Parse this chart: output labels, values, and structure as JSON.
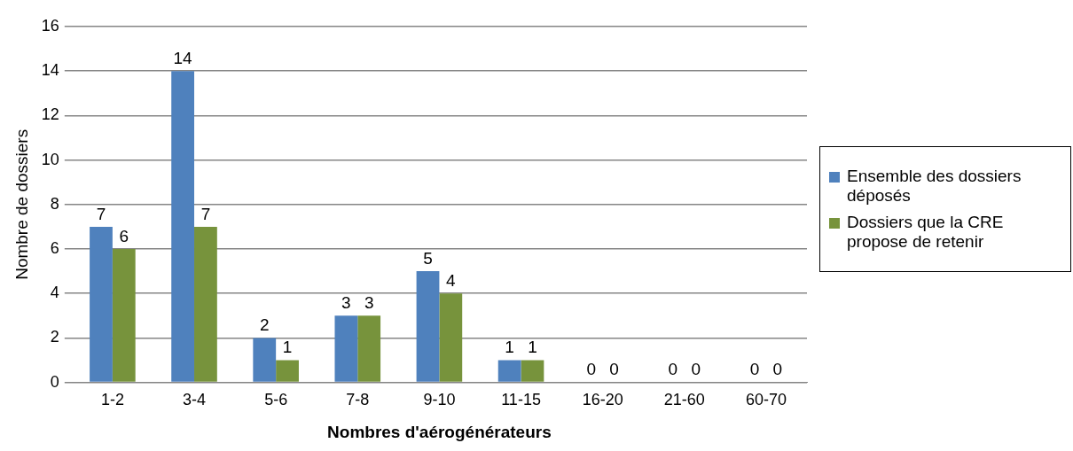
{
  "chart_data": {
    "type": "bar",
    "xlabel": "Nombres d'aérogénérateurs",
    "ylabel": "Nombre de dossiers",
    "categories": [
      "1-2",
      "3-4",
      "5-6",
      "7-8",
      "9-10",
      "11-15",
      "16-20",
      "21-60",
      "60-70"
    ],
    "series": [
      {
        "name": "Ensemble des dossiers déposés",
        "color": "#4f81bd",
        "values": [
          7,
          14,
          2,
          3,
          5,
          1,
          0,
          0,
          0
        ]
      },
      {
        "name": "Dossiers que la CRE propose de retenir",
        "color": "#77933c",
        "values": [
          6,
          7,
          1,
          3,
          4,
          1,
          0,
          0,
          0
        ]
      }
    ],
    "ylim": [
      0,
      16
    ],
    "yticks": [
      0,
      2,
      4,
      6,
      8,
      10,
      12,
      14,
      16
    ],
    "grid": "y",
    "legend": "right",
    "data_labels": true
  }
}
